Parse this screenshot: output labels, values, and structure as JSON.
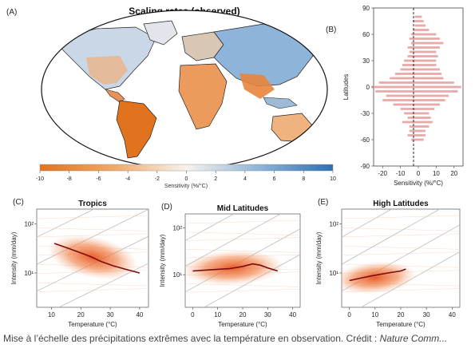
{
  "caption": {
    "text": "Mise à l’échelle des précipitations extrêmes avec la température en observation. Crédit : ",
    "credit_source": "Nature Comm..."
  },
  "chart_data": [
    {
      "panel": "(A)",
      "type": "heatmap",
      "title": "Scaling rates (observed)",
      "colorbar": {
        "label": "Sensitivity (%/°C)",
        "ticks": [
          -10,
          -8,
          -6,
          -4,
          -2,
          0,
          2,
          4,
          6,
          8,
          10
        ],
        "range": [
          -10,
          10
        ],
        "colors": {
          "negative": "#e2731e",
          "neutral": "#f7f3ee",
          "positive": "#2f6fb0"
        }
      }
    },
    {
      "panel": "(B)",
      "type": "bar",
      "orientation": "horizontal",
      "xlabel": "Sensitivity (%/°C)",
      "ylabel": "Latitudes",
      "xticks": [
        -20,
        -10,
        0,
        10,
        20
      ],
      "yticks": [
        -90,
        -60,
        -30,
        0,
        30,
        60,
        90
      ],
      "xlim": [
        -25,
        25
      ],
      "ylim": [
        -90,
        90
      ],
      "bar_color": "#e49a9a",
      "latitudes": [
        -60,
        -55,
        -50,
        -45,
        -40,
        -35,
        -30,
        -25,
        -20,
        -15,
        -10,
        -5,
        0,
        5,
        10,
        15,
        20,
        25,
        30,
        35,
        40,
        45,
        50,
        55,
        60,
        65,
        70,
        75,
        80
      ],
      "min_values": [
        -4,
        -6,
        -5,
        -5,
        -9,
        -6,
        -8,
        -10,
        -14,
        -20,
        -18,
        -24,
        -26,
        -22,
        -16,
        -13,
        -10,
        -9,
        -8,
        -6,
        -5,
        -6,
        -4,
        -5,
        -4,
        -3,
        -2,
        -3,
        -2
      ],
      "max_values": [
        3,
        4,
        4,
        6,
        8,
        7,
        6,
        9,
        12,
        15,
        17,
        22,
        24,
        20,
        14,
        13,
        12,
        10,
        10,
        11,
        10,
        12,
        14,
        12,
        10,
        6,
        4,
        3,
        2
      ]
    },
    {
      "panel": "(C)",
      "type": "line",
      "title": "Tropics",
      "xlabel": "Temperature (°C)",
      "ylabel": "Intensity (mm/day)",
      "xticks": [
        10,
        20,
        30,
        40
      ],
      "xlim": [
        5,
        43
      ],
      "ytick_labels": [
        "10¹",
        "10²"
      ],
      "yscale": "log",
      "ylim": [
        2,
        200
      ],
      "series": [
        {
          "x": [
            11,
            15,
            19,
            23,
            27,
            31,
            35,
            40
          ],
          "y": [
            40,
            33,
            27,
            22,
            17,
            14,
            12,
            10
          ]
        }
      ]
    },
    {
      "panel": "(D)",
      "type": "line",
      "title": "Mid Latitudes",
      "xlabel": "Temperature (°C)",
      "ylabel": "Intensity (mm/day)",
      "xticks": [
        0,
        10,
        20,
        30,
        40
      ],
      "xlim": [
        -3,
        43
      ],
      "ytick_labels": [
        "10¹",
        "10²"
      ],
      "yscale": "log",
      "ylim": [
        2,
        200
      ],
      "series": [
        {
          "x": [
            0,
            5,
            10,
            15,
            20,
            24,
            27,
            30,
            34
          ],
          "y": [
            12,
            12.5,
            13,
            13.5,
            15,
            17,
            16,
            14,
            12
          ]
        }
      ]
    },
    {
      "panel": "(E)",
      "type": "line",
      "title": "High Latitudes",
      "xlabel": "Temperature (°C)",
      "ylabel": "Intensity (mm/day)",
      "xticks": [
        0,
        10,
        20,
        30,
        40
      ],
      "xlim": [
        -3,
        43
      ],
      "ytick_labels": [
        "10¹",
        "10²"
      ],
      "yscale": "log",
      "ylim": [
        2,
        200
      ],
      "series": [
        {
          "x": [
            0,
            5,
            10,
            15,
            20,
            22
          ],
          "y": [
            7,
            8,
            9,
            10,
            11,
            12
          ]
        }
      ]
    }
  ]
}
